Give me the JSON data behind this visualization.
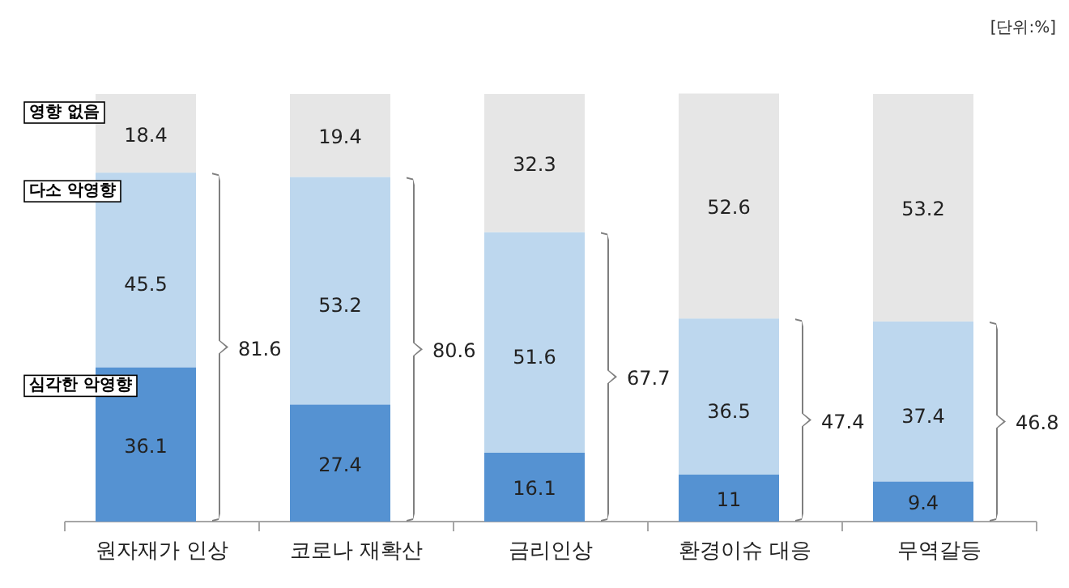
{
  "chart_data": {
    "type": "bar",
    "stacked": true,
    "data_labels": true,
    "ylim": [
      0,
      100
    ],
    "categories": [
      "원자재가 인상",
      "코로나 재확산",
      "금리인상",
      "환경이슈 대응",
      "무역갈등"
    ],
    "series": [
      {
        "name": "심각한 악영향",
        "color": "#5592d2",
        "values": [
          36.1,
          27.4,
          16.1,
          11,
          9.4
        ]
      },
      {
        "name": "다소 악영향",
        "color": "#bdd7ee",
        "values": [
          45.5,
          53.2,
          51.6,
          36.5,
          37.4
        ]
      },
      {
        "name": "영향 없음",
        "color": "#e6e6e6",
        "values": [
          18.4,
          19.4,
          32.3,
          52.6,
          53.2
        ]
      }
    ],
    "annotations": [
      "[단위:%]",
      "81.6",
      "80.6",
      "67.7",
      "47.4",
      "46.8"
    ]
  }
}
